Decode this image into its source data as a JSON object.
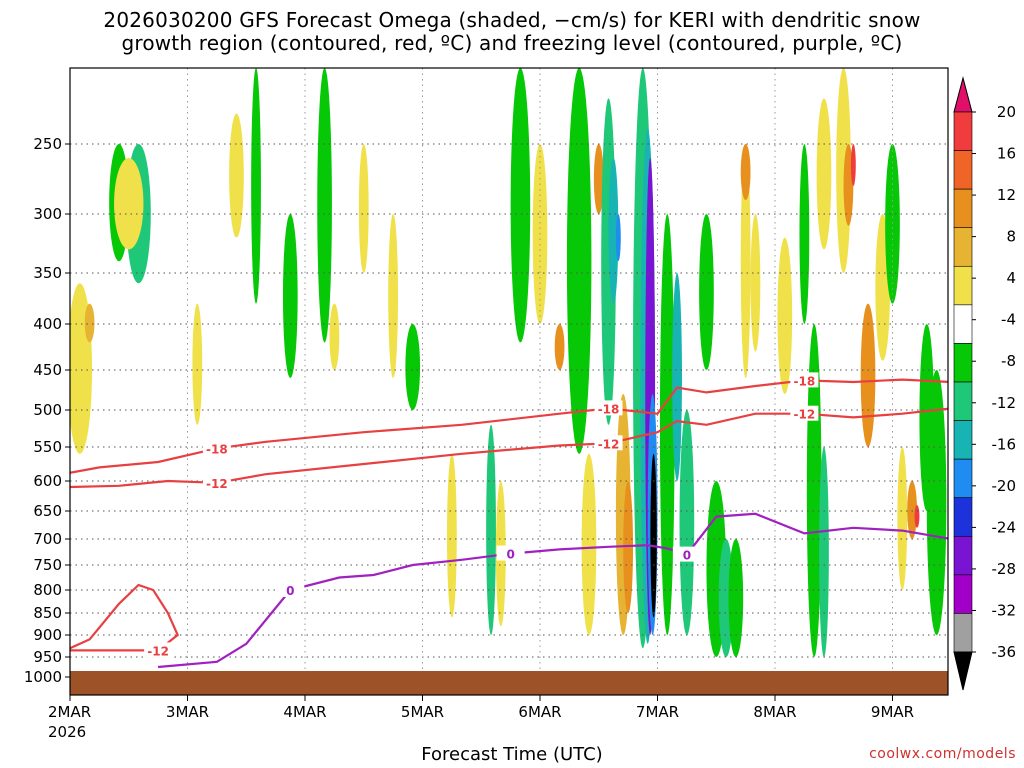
{
  "chart_data": {
    "type": "heatmap",
    "title_line1": "2026030200 GFS Forecast Omega (shaded, −cm/s) for KERI with dendritic snow",
    "title_line2": "growth region (contoured, red, ºC) and freezing level (contoured, purple, ºC)",
    "xlabel": "Forecast Time (UTC)",
    "ylabel": "",
    "credit": "coolwx.com/models",
    "x_ticks": [
      "2MAR",
      "3MAR",
      "4MAR",
      "5MAR",
      "6MAR",
      "7MAR",
      "8MAR",
      "9MAR"
    ],
    "x_year": "2026",
    "xlim_hours": [
      0,
      180
    ],
    "y_ticks": [
      250,
      300,
      350,
      400,
      450,
      500,
      550,
      600,
      650,
      700,
      750,
      800,
      850,
      900,
      950,
      1000
    ],
    "ylim_hpa": [
      200,
      1020
    ],
    "surface_pressure_hpa": 985,
    "colorbar": {
      "levels": [
        20,
        16,
        12,
        8,
        4,
        -4,
        -8,
        -12,
        -16,
        -20,
        -24,
        -28,
        -32,
        -36
      ],
      "labels": [
        "20",
        "16",
        "12",
        "8",
        "4",
        "-4",
        "-8",
        "-12",
        "-16",
        "-20",
        "-24",
        "-28",
        "-32",
        "-36"
      ],
      "colors": [
        "#e0106a",
        "#f03c3c",
        "#f06428",
        "#e8901e",
        "#e6b432",
        "#f0e14a",
        "#ffffff",
        "#06c806",
        "#1ec878",
        "#18b4b4",
        "#1e8cf0",
        "#1e32dc",
        "#7814d2",
        "#a000c8",
        "#a0a0a0",
        "#000000"
      ]
    },
    "series": [
      {
        "name": "-18 C isotherm",
        "color": "#e84040",
        "label": "-18",
        "points": [
          [
            0,
            588
          ],
          [
            6,
            580
          ],
          [
            18,
            572
          ],
          [
            30,
            552
          ],
          [
            40,
            543
          ],
          [
            60,
            530
          ],
          [
            80,
            520
          ],
          [
            100,
            505
          ],
          [
            110,
            498
          ],
          [
            120,
            505
          ],
          [
            124,
            472
          ],
          [
            130,
            478
          ],
          [
            140,
            470
          ],
          [
            150,
            463
          ],
          [
            160,
            465
          ],
          [
            170,
            462
          ],
          [
            180,
            465
          ]
        ]
      },
      {
        "name": "-12 C isotherm",
        "color": "#e84040",
        "label": "-12",
        "points": [
          [
            0,
            610
          ],
          [
            10,
            608
          ],
          [
            20,
            600
          ],
          [
            30,
            603
          ],
          [
            40,
            590
          ],
          [
            60,
            575
          ],
          [
            80,
            560
          ],
          [
            100,
            548
          ],
          [
            110,
            545
          ],
          [
            120,
            530
          ],
          [
            124,
            515
          ],
          [
            130,
            520
          ],
          [
            140,
            505
          ],
          [
            150,
            505
          ],
          [
            160,
            510
          ],
          [
            170,
            505
          ],
          [
            180,
            498
          ]
        ]
      },
      {
        "name": "-12 C isotherm lower",
        "color": "#e84040",
        "label": "-12",
        "points": [
          [
            0,
            930
          ],
          [
            4,
            910
          ],
          [
            10,
            830
          ],
          [
            14,
            790
          ],
          [
            17,
            800
          ],
          [
            20,
            850
          ],
          [
            22,
            900
          ],
          [
            18,
            935
          ],
          [
            0,
            935
          ]
        ]
      },
      {
        "name": "0 C freezing level",
        "color": "#a020c0",
        "label": "0",
        "points": [
          [
            18,
            975
          ],
          [
            30,
            962
          ],
          [
            36,
            920
          ],
          [
            45,
            800
          ],
          [
            55,
            775
          ],
          [
            62,
            770
          ],
          [
            70,
            750
          ],
          [
            80,
            740
          ],
          [
            90,
            728
          ],
          [
            100,
            720
          ],
          [
            110,
            715
          ],
          [
            118,
            712
          ],
          [
            122,
            718
          ],
          [
            126,
            730
          ],
          [
            132,
            660
          ],
          [
            140,
            655
          ],
          [
            150,
            690
          ],
          [
            160,
            680
          ],
          [
            170,
            685
          ],
          [
            180,
            700
          ]
        ]
      }
    ],
    "contour_labels": [
      "-18",
      "-12",
      "0"
    ]
  }
}
